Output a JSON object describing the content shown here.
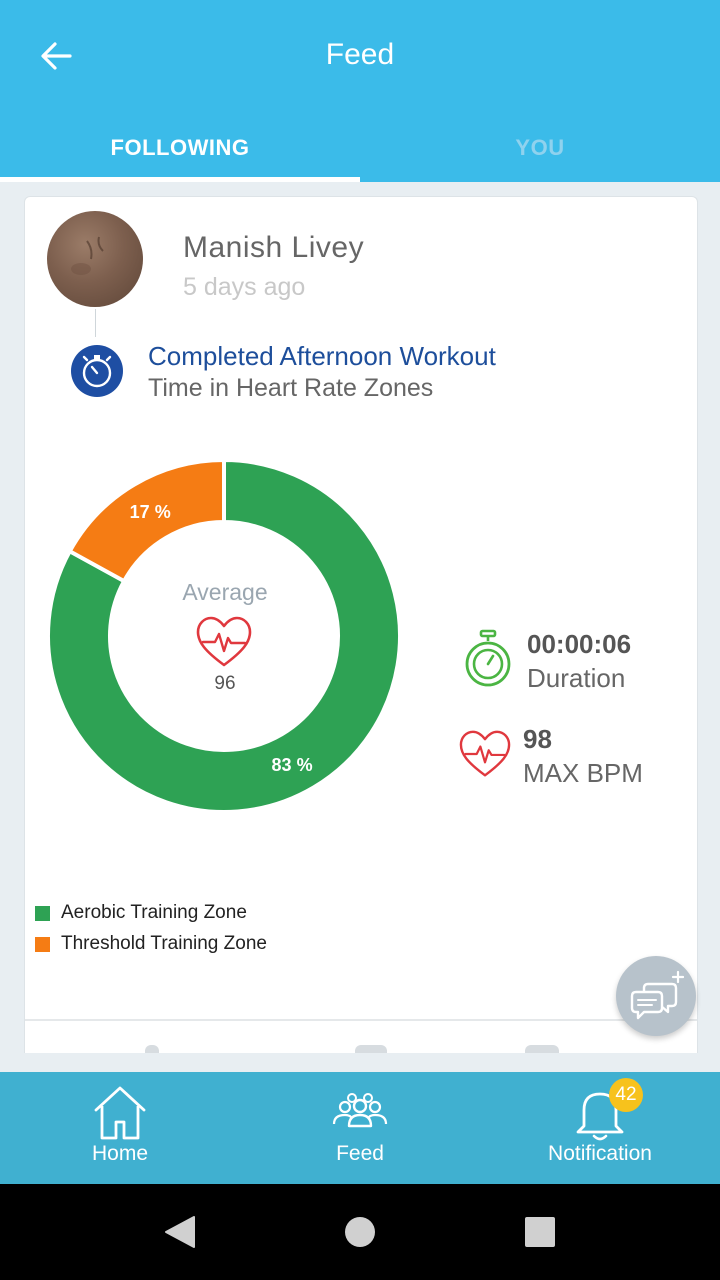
{
  "header": {
    "title": "Feed"
  },
  "tabs": [
    {
      "label": "FOLLOWING",
      "active": true
    },
    {
      "label": "YOU",
      "active": false
    }
  ],
  "post": {
    "user_name": "Manish Livey",
    "time_ago": "5 days ago",
    "workout_title": "Completed Afternoon Workout",
    "workout_subtitle": "Time in Heart Rate Zones"
  },
  "chart_data": {
    "type": "pie",
    "donut": true,
    "slices": [
      {
        "name": "Aerobic Training Zone",
        "value": 83,
        "label": "83 %",
        "color": "#2ea254"
      },
      {
        "name": "Threshold Training Zone",
        "value": 17,
        "label": "17 %",
        "color": "#f57c14"
      }
    ],
    "center_label": "Average",
    "center_value": "96",
    "legend": [
      "Aerobic Training Zone",
      "Threshold Training Zone"
    ],
    "legend_position": "bottom-left"
  },
  "stats": [
    {
      "icon": "stopwatch-icon",
      "value": "00:00:06",
      "label": "Duration"
    },
    {
      "icon": "heart-rate-icon",
      "value": "98",
      "label": "MAX BPM"
    }
  ],
  "bottom_nav": {
    "items": [
      {
        "label": "Home",
        "icon": "home-icon"
      },
      {
        "label": "Feed",
        "icon": "people-icon"
      },
      {
        "label": "Notification",
        "icon": "bell-icon",
        "badge": "42"
      }
    ]
  },
  "colors": {
    "header": "#3bbbe9",
    "bottom_nav": "#40b0d0",
    "aerobic": "#2ea254",
    "threshold": "#f57c14",
    "badge": "#f7c21c",
    "workout_title": "#1d4e9b"
  }
}
